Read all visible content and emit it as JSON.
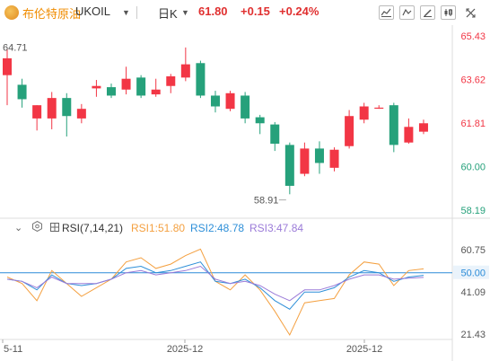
{
  "header": {
    "name": "布伦特原油",
    "code": "UKOIL",
    "period": "日K",
    "price": "61.80",
    "change": "+0.15",
    "change_pct": "+0.24%",
    "icons": [
      "line-chart-icon",
      "indicator-icon",
      "drawing-icon",
      "bars-icon",
      "fullscreen-icon"
    ]
  },
  "colors": {
    "up": "#f23645",
    "down": "#26a17b",
    "accent": "#f08c00",
    "ref_line": "#2b8cd8"
  },
  "chart_data": [
    {
      "type": "candlestick",
      "y_ticks": [
        "65.43",
        "63.62",
        "61.81",
        "60.00",
        "58.19"
      ],
      "ylim": [
        58.19,
        65.43
      ],
      "x_ticks": [
        "5-11",
        "2025-12",
        "2025-12"
      ],
      "annotations": {
        "high": "64.71",
        "low": "58.91"
      },
      "candles": [
        {
          "o": 63.8,
          "h": 64.9,
          "l": 62.55,
          "c": 64.5
        },
        {
          "o": 63.4,
          "h": 63.65,
          "l": 62.45,
          "c": 62.8
        },
        {
          "o": 62.0,
          "h": 62.55,
          "l": 61.5,
          "c": 62.55
        },
        {
          "o": 62.0,
          "h": 63.1,
          "l": 61.55,
          "c": 62.85
        },
        {
          "o": 62.85,
          "h": 63.05,
          "l": 61.25,
          "c": 62.1
        },
        {
          "o": 62.0,
          "h": 62.6,
          "l": 61.8,
          "c": 62.4
        },
        {
          "o": 63.25,
          "h": 63.6,
          "l": 62.9,
          "c": 63.35
        },
        {
          "o": 63.3,
          "h": 63.45,
          "l": 62.85,
          "c": 62.95
        },
        {
          "o": 63.2,
          "h": 64.15,
          "l": 63.0,
          "c": 63.65
        },
        {
          "o": 63.7,
          "h": 63.8,
          "l": 62.85,
          "c": 62.95
        },
        {
          "o": 63.0,
          "h": 63.65,
          "l": 62.9,
          "c": 63.2
        },
        {
          "o": 63.35,
          "h": 63.85,
          "l": 63.05,
          "c": 63.75
        },
        {
          "o": 63.7,
          "h": 64.95,
          "l": 63.55,
          "c": 64.25
        },
        {
          "o": 64.3,
          "h": 64.4,
          "l": 62.85,
          "c": 62.95
        },
        {
          "o": 62.95,
          "h": 63.15,
          "l": 62.25,
          "c": 62.5
        },
        {
          "o": 62.4,
          "h": 63.15,
          "l": 62.3,
          "c": 63.05
        },
        {
          "o": 62.95,
          "h": 63.1,
          "l": 61.8,
          "c": 62.0
        },
        {
          "o": 62.05,
          "h": 62.15,
          "l": 61.35,
          "c": 61.8
        },
        {
          "o": 61.75,
          "h": 61.85,
          "l": 60.65,
          "c": 60.95
        },
        {
          "o": 60.9,
          "h": 61.0,
          "l": 58.85,
          "c": 59.2
        },
        {
          "o": 59.7,
          "h": 61.0,
          "l": 59.6,
          "c": 60.75
        },
        {
          "o": 60.75,
          "h": 61.05,
          "l": 59.7,
          "c": 60.15
        },
        {
          "o": 59.95,
          "h": 60.8,
          "l": 59.8,
          "c": 60.7
        },
        {
          "o": 60.85,
          "h": 62.35,
          "l": 60.75,
          "c": 62.1
        },
        {
          "o": 61.95,
          "h": 62.65,
          "l": 61.8,
          "c": 62.5
        },
        {
          "o": 62.45,
          "h": 62.55,
          "l": 62.4,
          "c": 62.45
        },
        {
          "o": 62.55,
          "h": 62.65,
          "l": 60.6,
          "c": 60.9
        },
        {
          "o": 61.0,
          "h": 62.0,
          "l": 60.95,
          "c": 61.65
        },
        {
          "o": 61.45,
          "h": 61.95,
          "l": 61.35,
          "c": 61.8
        }
      ]
    },
    {
      "type": "line",
      "title": "RSI(7,14,21)",
      "ylim": [
        21.43,
        60.75
      ],
      "y_ticks": [
        "60.75",
        "50.00",
        "41.09",
        "21.43"
      ],
      "reference_line": 50,
      "series": [
        {
          "name": "RSI1",
          "label": "RSI1:51.80",
          "color": "#f4a040",
          "values": [
            48,
            45,
            37,
            51,
            45,
            39,
            43,
            47,
            55,
            57,
            52,
            54,
            58,
            61,
            46,
            42,
            49,
            42,
            32,
            21,
            36,
            37,
            38,
            49,
            55,
            54,
            44,
            51,
            51.8
          ]
        },
        {
          "name": "RSI2",
          "label": "RSI2:48.78",
          "color": "#2e8fd8",
          "values": [
            47,
            46,
            42,
            49,
            45,
            44,
            45,
            47,
            52,
            53,
            50,
            51,
            53,
            55,
            46,
            45,
            47,
            43,
            37,
            33,
            41,
            41,
            43,
            48,
            51,
            50,
            46,
            48,
            48.78
          ]
        },
        {
          "name": "RSI3",
          "label": "RSI3:47.84",
          "color": "#9b7bd8",
          "values": [
            47,
            46,
            43,
            48,
            45,
            45,
            45,
            47,
            50,
            51,
            49,
            50,
            51,
            53,
            47,
            45,
            46,
            44,
            40,
            37,
            42,
            42,
            44,
            47,
            49,
            49,
            47,
            47.5,
            47.84
          ]
        }
      ]
    }
  ]
}
